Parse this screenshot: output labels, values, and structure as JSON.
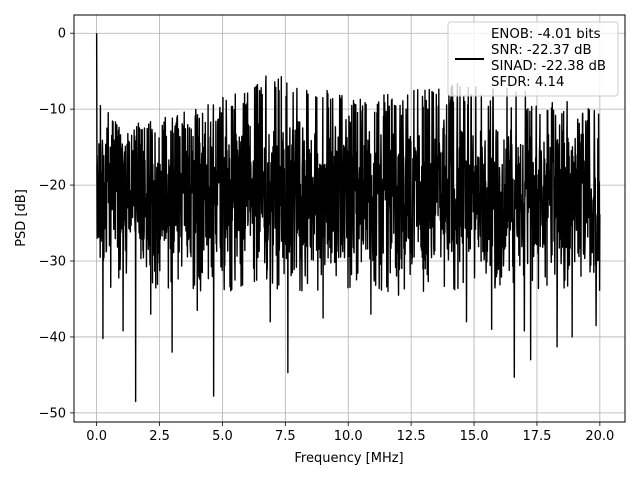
{
  "chart_data": {
    "type": "line",
    "title": "",
    "xlabel": "Frequency [MHz]",
    "ylabel": "PSD [dB]",
    "xlim": [
      -0.9,
      21.0
    ],
    "ylim": [
      -51.2,
      2.4
    ],
    "xticks": [
      0.0,
      2.5,
      5.0,
      7.5,
      10.0,
      12.5,
      15.0,
      17.5,
      20.0
    ],
    "xtick_labels": [
      "0.0",
      "2.5",
      "5.0",
      "7.5",
      "10.0",
      "12.5",
      "15.0",
      "17.5",
      "20.0"
    ],
    "yticks": [
      0,
      -10,
      -20,
      -30,
      -40,
      -50
    ],
    "ytick_labels": [
      "0",
      "−10",
      "−20",
      "−30",
      "−40",
      "−50"
    ],
    "grid": true,
    "legend_position": "top-right",
    "series_color": "#000000",
    "legend": {
      "lines": [
        "ENOB: -4.01 bits",
        "SNR: -22.37 dB",
        "SINAD: -22.38 dB",
        "SFDR: 4.14"
      ]
    },
    "series": [
      {
        "x_start": 0.0,
        "x_end": 20.0,
        "spike": {
          "x": 0.0,
          "y": 0.0
        },
        "typical_range": [
          -27,
          -12
        ],
        "envelope_max": [
          [
            0.0,
            -8
          ],
          [
            1.0,
            -12.5
          ],
          [
            2.5,
            -11
          ],
          [
            4.0,
            -10
          ],
          [
            5.0,
            -8.5
          ],
          [
            7.0,
            -5
          ],
          [
            8.0,
            -6
          ],
          [
            10.0,
            -8
          ],
          [
            12.0,
            -8
          ],
          [
            14.0,
            -6.5
          ],
          [
            16.0,
            -7
          ],
          [
            18.0,
            -8
          ],
          [
            20.0,
            -10
          ]
        ],
        "notable_minima": [
          {
            "x": 0.25,
            "y": -40.2
          },
          {
            "x": 1.05,
            "y": -39.2
          },
          {
            "x": 1.55,
            "y": -48.5
          },
          {
            "x": 2.15,
            "y": -37.0
          },
          {
            "x": 3.0,
            "y": -42.0
          },
          {
            "x": 4.0,
            "y": -36.5
          },
          {
            "x": 4.65,
            "y": -47.8
          },
          {
            "x": 5.5,
            "y": -32.5
          },
          {
            "x": 6.9,
            "y": -38.0
          },
          {
            "x": 7.6,
            "y": -44.7
          },
          {
            "x": 9.0,
            "y": -37.5
          },
          {
            "x": 10.9,
            "y": -37.0
          },
          {
            "x": 12.0,
            "y": -34.5
          },
          {
            "x": 14.7,
            "y": -38.0
          },
          {
            "x": 15.7,
            "y": -39.0
          },
          {
            "x": 16.6,
            "y": -45.3
          },
          {
            "x": 17.0,
            "y": -39.2
          },
          {
            "x": 17.25,
            "y": -43.0
          },
          {
            "x": 18.3,
            "y": -41.3
          },
          {
            "x": 18.9,
            "y": -40.0
          },
          {
            "x": 19.85,
            "y": -38.5
          }
        ]
      }
    ]
  }
}
